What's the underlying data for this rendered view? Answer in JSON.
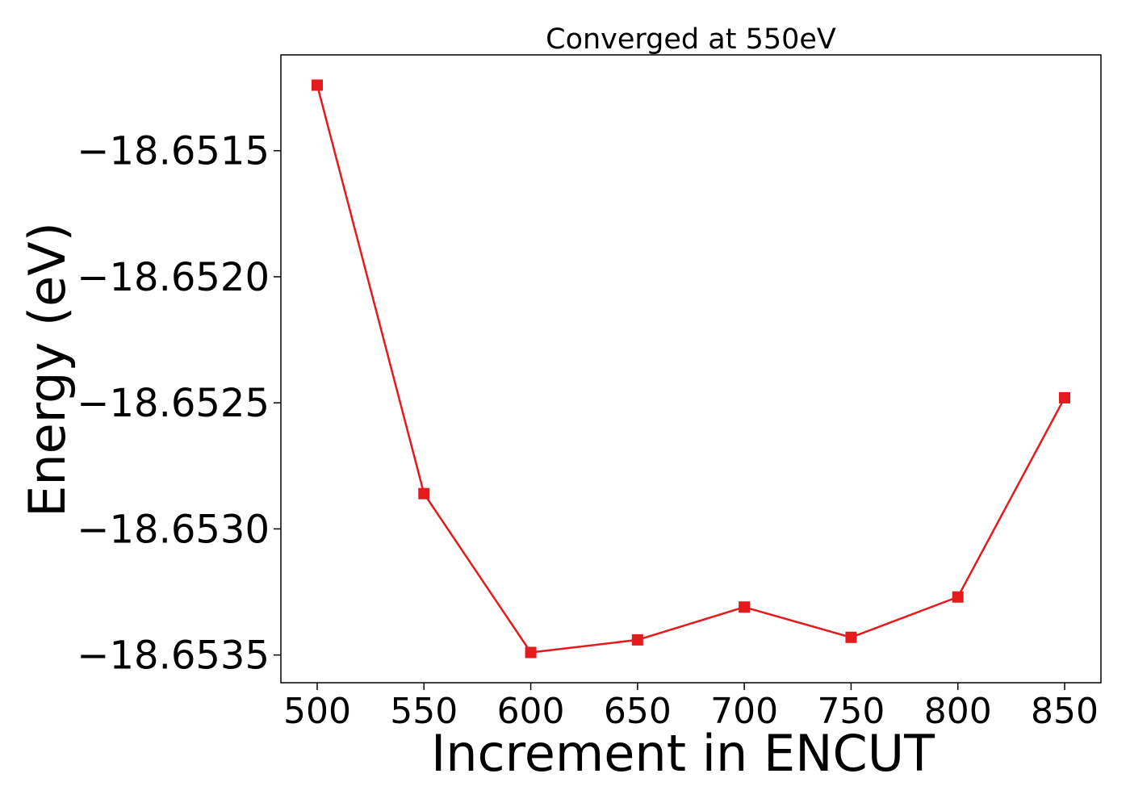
{
  "chart_data": {
    "type": "line",
    "title": "Converged at 550eV",
    "xlabel": "Increment in ENCUT",
    "ylabel": "Energy (eV)",
    "x": [
      500,
      550,
      600,
      650,
      700,
      750,
      800,
      850
    ],
    "series": [
      {
        "values": [
          -18.65124,
          -18.65286,
          -18.65349,
          -18.65344,
          -18.65331,
          -18.65343,
          -18.65327,
          -18.65248
        ],
        "color": "#e41a1c",
        "marker": "square"
      }
    ],
    "xlim": [
      483,
      867
    ],
    "ylim": [
      -18.65361,
      -18.65112
    ],
    "xticks": [
      500,
      550,
      600,
      650,
      700,
      750,
      800,
      850
    ],
    "xtick_labels": [
      "500",
      "550",
      "600",
      "650",
      "700",
      "750",
      "800",
      "850"
    ],
    "yticks": [
      -18.6515,
      -18.652,
      -18.6525,
      -18.653,
      -18.6535
    ],
    "ytick_labels": [
      "−18.6515",
      "−18.6520",
      "−18.6525",
      "−18.6530",
      "−18.6535"
    ],
    "grid": false,
    "legend": "none"
  }
}
